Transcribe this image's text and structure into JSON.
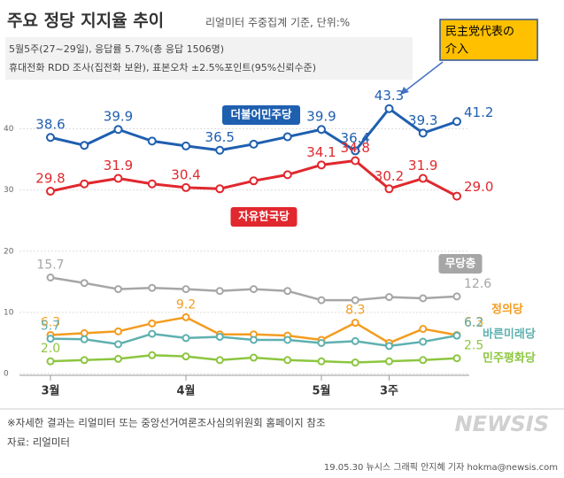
{
  "chart_data": {
    "type": "line",
    "title": "주요 정당 지지율 추이",
    "subtitle": "리얼미터 주중집계 기준, 단위:%",
    "notes": [
      "5월5주(27~29일), 응답률 5.7%(총 응답 1506명)",
      "휴대전화 RDD 조사(집전화 보완), 표본오차 ±2.5%포인트(95%신뢰수준)"
    ],
    "annotation": [
      "民主党代表の",
      "介入"
    ],
    "footnote": "※자세한 결과는 리얼미터 또는 중앙선거여론조사심의위원회 홈페이지 참조",
    "source": "자료: 리얼미터",
    "credit": "19.05.30 뉴시스 그래픽 안지혜 기자 hokma@newsis.com",
    "watermark": "NEWSIS",
    "categories": [
      "3월",
      null,
      null,
      null,
      "4월",
      null,
      null,
      null,
      "5월",
      null,
      "3주",
      null,
      null
    ],
    "ylim": [
      0,
      45
    ],
    "yticks": [
      0,
      10,
      20,
      30,
      40
    ],
    "grid": true,
    "series": [
      {
        "name": "더불어민주당",
        "color": "#1f5fb0",
        "values": [
          38.6,
          37.3,
          39.9,
          38.0,
          37.2,
          36.5,
          37.5,
          38.7,
          39.9,
          36.4,
          43.3,
          39.3,
          41.2
        ],
        "value_labels": [
          "38.6",
          null,
          "39.9",
          null,
          null,
          "36.5",
          null,
          null,
          "39.9",
          "36.4",
          "43.3",
          "39.3",
          "41.2"
        ]
      },
      {
        "name": "자유한국당",
        "color": "#e0282e",
        "values": [
          29.8,
          31.0,
          31.9,
          31.0,
          30.4,
          30.2,
          31.5,
          32.5,
          34.1,
          34.8,
          30.2,
          31.9,
          29.0
        ],
        "value_labels": [
          "29.8",
          null,
          "31.9",
          null,
          "30.4",
          null,
          null,
          null,
          "34.1",
          "34.8",
          "30.2",
          "31.9",
          "29.0"
        ]
      },
      {
        "name": "무당층",
        "color": "#a6a6a6",
        "values": [
          15.7,
          14.8,
          13.8,
          14.0,
          13.8,
          13.5,
          13.8,
          13.5,
          12.0,
          12.0,
          12.5,
          12.3,
          12.6
        ],
        "value_labels": [
          "15.7",
          null,
          null,
          null,
          null,
          null,
          null,
          null,
          null,
          null,
          null,
          null,
          "12.6"
        ]
      },
      {
        "name": "정의당",
        "color": "#f39c1f",
        "values": [
          6.3,
          6.6,
          6.9,
          8.2,
          9.2,
          6.4,
          6.4,
          6.2,
          5.5,
          8.3,
          5.0,
          7.3,
          6.3
        ],
        "value_labels": [
          "6.3",
          null,
          null,
          null,
          "9.2",
          null,
          null,
          null,
          null,
          "8.3",
          null,
          null,
          "6.3"
        ]
      },
      {
        "name": "바른미래당",
        "color": "#5fb0b0",
        "values": [
          5.7,
          5.6,
          4.8,
          6.5,
          5.8,
          6.0,
          5.5,
          5.5,
          5.0,
          5.3,
          4.5,
          5.2,
          6.2
        ],
        "value_labels": [
          "5.7",
          null,
          null,
          null,
          null,
          null,
          null,
          null,
          null,
          null,
          null,
          null,
          "6.2"
        ]
      },
      {
        "name": "민주평화당",
        "color": "#8cc63f",
        "values": [
          2.0,
          2.2,
          2.4,
          3.0,
          2.8,
          2.2,
          2.6,
          2.2,
          2.0,
          1.8,
          2.0,
          2.2,
          2.5
        ],
        "value_labels": [
          "2.0",
          null,
          null,
          null,
          null,
          null,
          null,
          null,
          null,
          null,
          null,
          null,
          "2.5"
        ]
      }
    ]
  }
}
